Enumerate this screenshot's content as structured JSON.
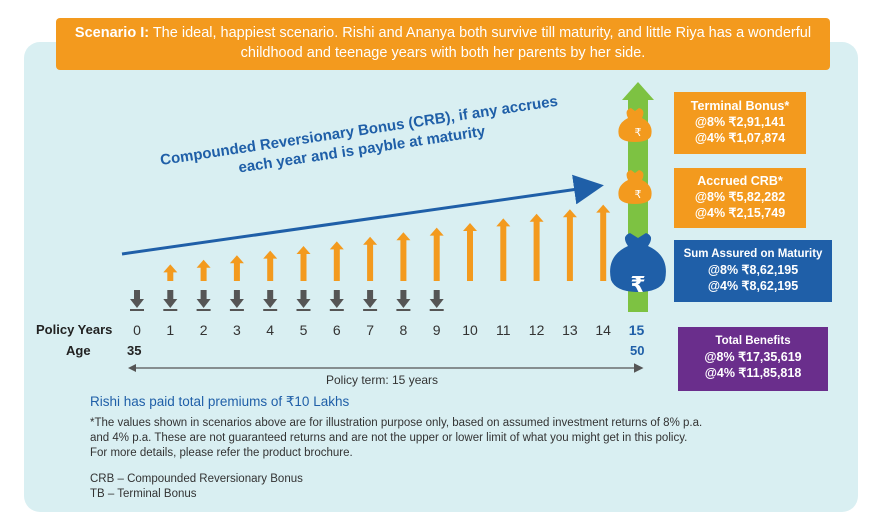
{
  "banner": {
    "label": "Scenario I:",
    "text": " The ideal, happiest scenario. Rishi and Ananya both survive till maturity, and little Riya has a wonderful childhood and teenage years with both her parents by her side."
  },
  "crb_caption": {
    "line1": "Compounded Reversionary Bonus (CRB), if any accrues",
    "line2": "each year and is payble at maturity"
  },
  "timeline": {
    "policy_years_label": "Policy Years",
    "age_label": "Age",
    "years": [
      "0",
      "1",
      "2",
      "3",
      "4",
      "5",
      "6",
      "7",
      "8",
      "9",
      "10",
      "11",
      "12",
      "13",
      "14",
      "15"
    ],
    "start_age": "35",
    "end_age": "50",
    "policy_term": "Policy term: 15 years"
  },
  "boxes": {
    "terminal": {
      "title": "Terminal Bonus*",
      "v8": "@8% ₹2,91,141",
      "v4": "@4% ₹1,07,874",
      "color": "#f39a1e"
    },
    "crb": {
      "title": "Accrued CRB*",
      "v8": "@8% ₹5,82,282",
      "v4": "@4% ₹2,15,749",
      "color": "#f39a1e"
    },
    "sum_assured": {
      "title": "Sum Assured on Maturity",
      "v8": "@8% ₹8,62,195",
      "v4": "@4% ₹8,62,195",
      "color": "#1f5fa8"
    },
    "total": {
      "title": "Total Benefits",
      "v8": "@8% ₹17,35,619",
      "v4": "@4% ₹11,85,818",
      "color": "#6a2e8c"
    }
  },
  "bag_symbol": "₹",
  "premium_note": "Rishi has paid total premiums of ₹10 Lakhs",
  "disclaimer": [
    "*The values shown in scenarios above are for illustration purpose only, based on assumed investment returns of 8% p.a.",
    "and 4% p.a. These are not guaranteed returns and are not the upper or lower limit of what you might get in this policy.",
    "For more details, please refer the product brochure."
  ],
  "abbrev": {
    "crb": "CRB – Compounded Reversionary Bonus",
    "tb": "TB – Terminal Bonus"
  },
  "colors": {
    "orange": "#f39a1e",
    "blue": "#1f5fa8",
    "purple": "#6a2e8c",
    "green": "#7dc242",
    "gray": "#555555",
    "panel": "#d9eff2"
  }
}
